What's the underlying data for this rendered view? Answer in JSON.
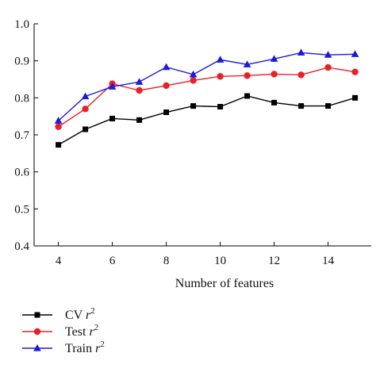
{
  "chart_data": {
    "type": "line",
    "title": "",
    "xlabel": "Number of features",
    "ylabel": "",
    "x": [
      4,
      5,
      6,
      7,
      8,
      9,
      10,
      11,
      12,
      13,
      14,
      15
    ],
    "xlim": [
      3.1,
      15.6
    ],
    "ylim": [
      0.4,
      1.0
    ],
    "xticks": [
      "4",
      "6",
      "8",
      "10",
      "12",
      "14"
    ],
    "xtick_values": [
      4,
      6,
      8,
      10,
      12,
      14
    ],
    "yticks": [
      "0.4",
      "0.5",
      "0.6",
      "0.7",
      "0.8",
      "0.9",
      "1.0"
    ],
    "ytick_values": [
      0.4,
      0.5,
      0.6,
      0.7,
      0.8,
      0.9,
      1.0
    ],
    "grid": false,
    "legend_position": "below",
    "series": [
      {
        "name": "CV r",
        "superscript": "2",
        "marker": "square",
        "color": "#000000",
        "values": [
          0.673,
          0.715,
          0.744,
          0.74,
          0.761,
          0.778,
          0.776,
          0.805,
          0.787,
          0.778,
          0.778,
          0.8
        ]
      },
      {
        "name": "Test r",
        "superscript": "2",
        "marker": "circle",
        "color": "#e8202a",
        "values": [
          0.722,
          0.77,
          0.838,
          0.82,
          0.833,
          0.847,
          0.858,
          0.86,
          0.864,
          0.862,
          0.882,
          0.87
        ]
      },
      {
        "name": "Train r",
        "superscript": "2",
        "marker": "triangle",
        "color": "#1a1adf",
        "values": [
          0.738,
          0.804,
          0.83,
          0.843,
          0.883,
          0.863,
          0.903,
          0.89,
          0.905,
          0.922,
          0.916,
          0.918
        ]
      }
    ]
  }
}
